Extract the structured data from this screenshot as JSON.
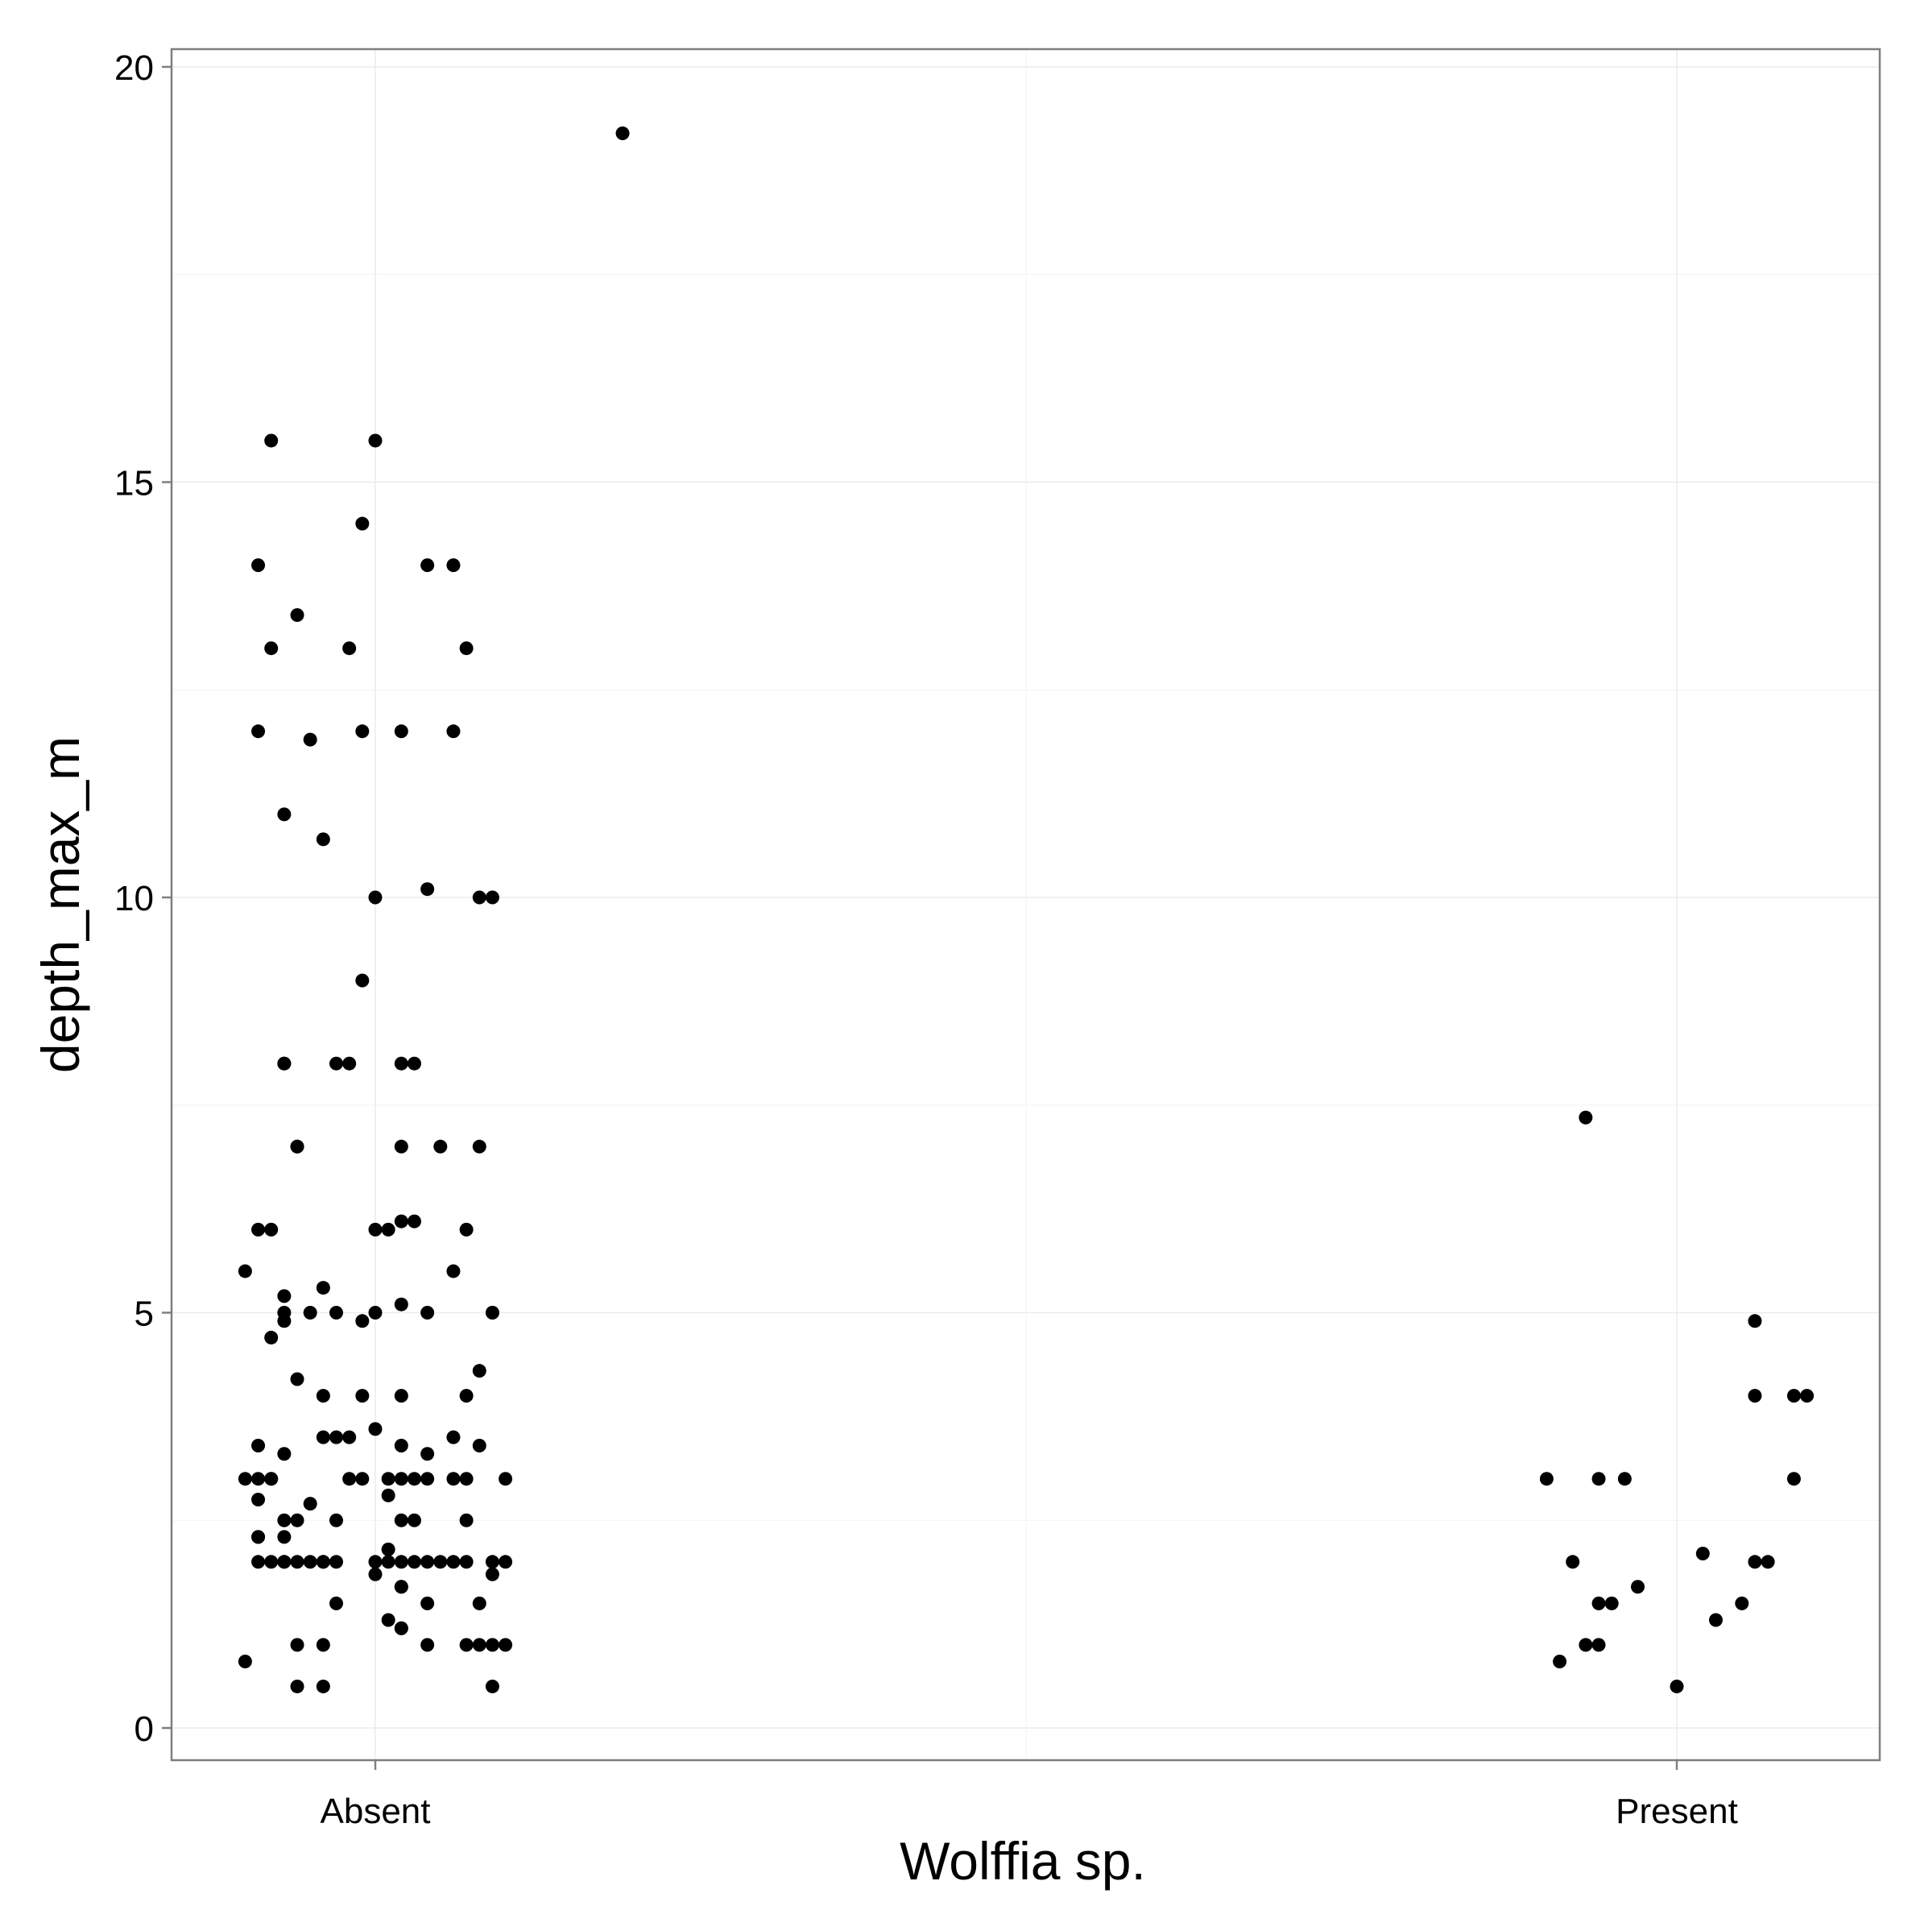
{
  "chart_data": {
    "type": "scatter",
    "xlabel": "Wolffia sp.",
    "ylabel": "depth_max_m",
    "categories": [
      "Absent",
      "Present"
    ],
    "y_ticks": [
      "0",
      "5",
      "10",
      "15",
      "20"
    ],
    "ylim": [
      -0.4,
      20.2
    ],
    "grid": true,
    "legend": "none",
    "point_color": "#000000",
    "series": [
      {
        "category": "Absent",
        "points": [
          {
            "jitter": 0.19,
            "y": 19.2
          },
          {
            "jitter": -0.08,
            "y": 15.5
          },
          {
            "jitter": 0.0,
            "y": 15.5
          },
          {
            "jitter": -0.01,
            "y": 14.5
          },
          {
            "jitter": -0.09,
            "y": 14.0
          },
          {
            "jitter": 0.04,
            "y": 14.0
          },
          {
            "jitter": 0.06,
            "y": 14.0
          },
          {
            "jitter": -0.06,
            "y": 13.4
          },
          {
            "jitter": -0.08,
            "y": 13.0
          },
          {
            "jitter": -0.02,
            "y": 13.0
          },
          {
            "jitter": 0.07,
            "y": 13.0
          },
          {
            "jitter": -0.09,
            "y": 12.0
          },
          {
            "jitter": -0.01,
            "y": 12.0
          },
          {
            "jitter": 0.02,
            "y": 12.0
          },
          {
            "jitter": 0.06,
            "y": 12.0
          },
          {
            "jitter": -0.05,
            "y": 11.9
          },
          {
            "jitter": -0.07,
            "y": 11.0
          },
          {
            "jitter": -0.04,
            "y": 10.7
          },
          {
            "jitter": 0.04,
            "y": 10.1
          },
          {
            "jitter": 0.0,
            "y": 10.0
          },
          {
            "jitter": 0.08,
            "y": 10.0
          },
          {
            "jitter": 0.09,
            "y": 10.0
          },
          {
            "jitter": -0.01,
            "y": 9.0
          },
          {
            "jitter": -0.07,
            "y": 8.0
          },
          {
            "jitter": -0.07,
            "y": 8.0
          },
          {
            "jitter": -0.03,
            "y": 8.0
          },
          {
            "jitter": -0.02,
            "y": 8.0
          },
          {
            "jitter": 0.02,
            "y": 8.0
          },
          {
            "jitter": 0.03,
            "y": 8.0
          },
          {
            "jitter": -0.06,
            "y": 7.0
          },
          {
            "jitter": -0.06,
            "y": 7.0
          },
          {
            "jitter": 0.02,
            "y": 7.0
          },
          {
            "jitter": 0.05,
            "y": 7.0
          },
          {
            "jitter": 0.08,
            "y": 7.0
          },
          {
            "jitter": -0.09,
            "y": 6.0
          },
          {
            "jitter": -0.08,
            "y": 6.0
          },
          {
            "jitter": 0.0,
            "y": 6.0
          },
          {
            "jitter": 0.01,
            "y": 6.0
          },
          {
            "jitter": 0.02,
            "y": 6.1
          },
          {
            "jitter": 0.03,
            "y": 6.1
          },
          {
            "jitter": 0.07,
            "y": 6.0
          },
          {
            "jitter": -0.1,
            "y": 5.5
          },
          {
            "jitter": 0.06,
            "y": 5.5
          },
          {
            "jitter": -0.04,
            "y": 5.3
          },
          {
            "jitter": -0.07,
            "y": 5.2
          },
          {
            "jitter": 0.02,
            "y": 5.1
          },
          {
            "jitter": -0.07,
            "y": 5.0
          },
          {
            "jitter": -0.05,
            "y": 5.0
          },
          {
            "jitter": -0.03,
            "y": 5.0
          },
          {
            "jitter": 0.0,
            "y": 5.0
          },
          {
            "jitter": 0.04,
            "y": 5.0
          },
          {
            "jitter": 0.09,
            "y": 5.0
          },
          {
            "jitter": 0.09,
            "y": 5.0
          },
          {
            "jitter": -0.07,
            "y": 4.9
          },
          {
            "jitter": -0.01,
            "y": 4.9
          },
          {
            "jitter": -0.08,
            "y": 4.7
          },
          {
            "jitter": 0.08,
            "y": 4.3
          },
          {
            "jitter": -0.06,
            "y": 4.2
          },
          {
            "jitter": -0.04,
            "y": 4.0
          },
          {
            "jitter": -0.01,
            "y": 4.0
          },
          {
            "jitter": 0.02,
            "y": 4.0
          },
          {
            "jitter": 0.07,
            "y": 4.0
          },
          {
            "jitter": 0.0,
            "y": 3.6
          },
          {
            "jitter": -0.04,
            "y": 3.5
          },
          {
            "jitter": -0.03,
            "y": 3.5
          },
          {
            "jitter": -0.02,
            "y": 3.5
          },
          {
            "jitter": 0.06,
            "y": 3.5
          },
          {
            "jitter": -0.09,
            "y": 3.4
          },
          {
            "jitter": -0.07,
            "y": 3.3
          },
          {
            "jitter": 0.02,
            "y": 3.4
          },
          {
            "jitter": 0.08,
            "y": 3.4
          },
          {
            "jitter": 0.04,
            "y": 3.3
          },
          {
            "jitter": -0.1,
            "y": 3.0
          },
          {
            "jitter": -0.09,
            "y": 3.0
          },
          {
            "jitter": -0.08,
            "y": 3.0
          },
          {
            "jitter": -0.08,
            "y": 3.0
          },
          {
            "jitter": -0.02,
            "y": 3.0
          },
          {
            "jitter": -0.01,
            "y": 3.0
          },
          {
            "jitter": 0.01,
            "y": 3.0
          },
          {
            "jitter": 0.02,
            "y": 3.0
          },
          {
            "jitter": 0.03,
            "y": 3.0
          },
          {
            "jitter": 0.04,
            "y": 3.0
          },
          {
            "jitter": 0.06,
            "y": 3.0
          },
          {
            "jitter": 0.07,
            "y": 3.0
          },
          {
            "jitter": 0.1,
            "y": 3.0
          },
          {
            "jitter": 0.01,
            "y": 2.8
          },
          {
            "jitter": -0.09,
            "y": 2.75
          },
          {
            "jitter": -0.05,
            "y": 2.7
          },
          {
            "jitter": -0.07,
            "y": 2.5
          },
          {
            "jitter": -0.06,
            "y": 2.5
          },
          {
            "jitter": -0.03,
            "y": 2.5
          },
          {
            "jitter": 0.02,
            "y": 2.5
          },
          {
            "jitter": 0.03,
            "y": 2.5
          },
          {
            "jitter": 0.07,
            "y": 2.5
          },
          {
            "jitter": -0.09,
            "y": 2.3
          },
          {
            "jitter": -0.09,
            "y": 2.3
          },
          {
            "jitter": -0.07,
            "y": 2.3
          },
          {
            "jitter": 0.01,
            "y": 2.15
          },
          {
            "jitter": -0.09,
            "y": 2.0
          },
          {
            "jitter": -0.08,
            "y": 2.0
          },
          {
            "jitter": -0.07,
            "y": 2.0
          },
          {
            "jitter": -0.07,
            "y": 2.0
          },
          {
            "jitter": -0.06,
            "y": 2.0
          },
          {
            "jitter": -0.05,
            "y": 2.0
          },
          {
            "jitter": -0.04,
            "y": 2.0
          },
          {
            "jitter": -0.04,
            "y": 2.0
          },
          {
            "jitter": -0.03,
            "y": 2.0
          },
          {
            "jitter": 0.0,
            "y": 2.0
          },
          {
            "jitter": 0.01,
            "y": 2.0
          },
          {
            "jitter": 0.02,
            "y": 2.0
          },
          {
            "jitter": 0.03,
            "y": 2.0
          },
          {
            "jitter": 0.04,
            "y": 2.0
          },
          {
            "jitter": 0.05,
            "y": 2.0
          },
          {
            "jitter": 0.06,
            "y": 2.0
          },
          {
            "jitter": 0.07,
            "y": 2.0
          },
          {
            "jitter": 0.09,
            "y": 2.0
          },
          {
            "jitter": 0.1,
            "y": 2.0
          },
          {
            "jitter": 0.0,
            "y": 1.85
          },
          {
            "jitter": 0.09,
            "y": 1.85
          },
          {
            "jitter": 0.02,
            "y": 1.7
          },
          {
            "jitter": 0.02,
            "y": 1.7
          },
          {
            "jitter": -0.03,
            "y": 1.5
          },
          {
            "jitter": 0.04,
            "y": 1.5
          },
          {
            "jitter": 0.08,
            "y": 1.5
          },
          {
            "jitter": 0.01,
            "y": 1.3
          },
          {
            "jitter": 0.02,
            "y": 1.2
          },
          {
            "jitter": 0.02,
            "y": 1.2
          },
          {
            "jitter": -0.06,
            "y": 1.0
          },
          {
            "jitter": -0.04,
            "y": 1.0
          },
          {
            "jitter": 0.04,
            "y": 1.0
          },
          {
            "jitter": 0.07,
            "y": 1.0
          },
          {
            "jitter": 0.08,
            "y": 1.0
          },
          {
            "jitter": 0.09,
            "y": 1.0
          },
          {
            "jitter": 0.1,
            "y": 1.0
          },
          {
            "jitter": -0.1,
            "y": 0.8
          },
          {
            "jitter": -0.06,
            "y": 0.5
          },
          {
            "jitter": -0.04,
            "y": 0.5
          },
          {
            "jitter": 0.09,
            "y": 0.5
          }
        ]
      },
      {
        "category": "Present",
        "points": [
          {
            "jitter": -0.07,
            "y": 7.35
          },
          {
            "jitter": 0.06,
            "y": 4.9
          },
          {
            "jitter": 0.06,
            "y": 4.0
          },
          {
            "jitter": 0.09,
            "y": 4.0
          },
          {
            "jitter": 0.1,
            "y": 4.0
          },
          {
            "jitter": -0.1,
            "y": 3.0
          },
          {
            "jitter": -0.06,
            "y": 3.0
          },
          {
            "jitter": -0.04,
            "y": 3.0
          },
          {
            "jitter": 0.09,
            "y": 3.0
          },
          {
            "jitter": 0.02,
            "y": 2.1
          },
          {
            "jitter": -0.08,
            "y": 2.0
          },
          {
            "jitter": 0.06,
            "y": 2.0
          },
          {
            "jitter": 0.07,
            "y": 2.0
          },
          {
            "jitter": -0.03,
            "y": 1.7
          },
          {
            "jitter": -0.06,
            "y": 1.5
          },
          {
            "jitter": -0.05,
            "y": 1.5
          },
          {
            "jitter": 0.05,
            "y": 1.5
          },
          {
            "jitter": 0.03,
            "y": 1.3
          },
          {
            "jitter": -0.07,
            "y": 1.0
          },
          {
            "jitter": -0.06,
            "y": 1.0
          },
          {
            "jitter": -0.09,
            "y": 0.8
          },
          {
            "jitter": 0.0,
            "y": 0.5
          }
        ]
      }
    ]
  }
}
